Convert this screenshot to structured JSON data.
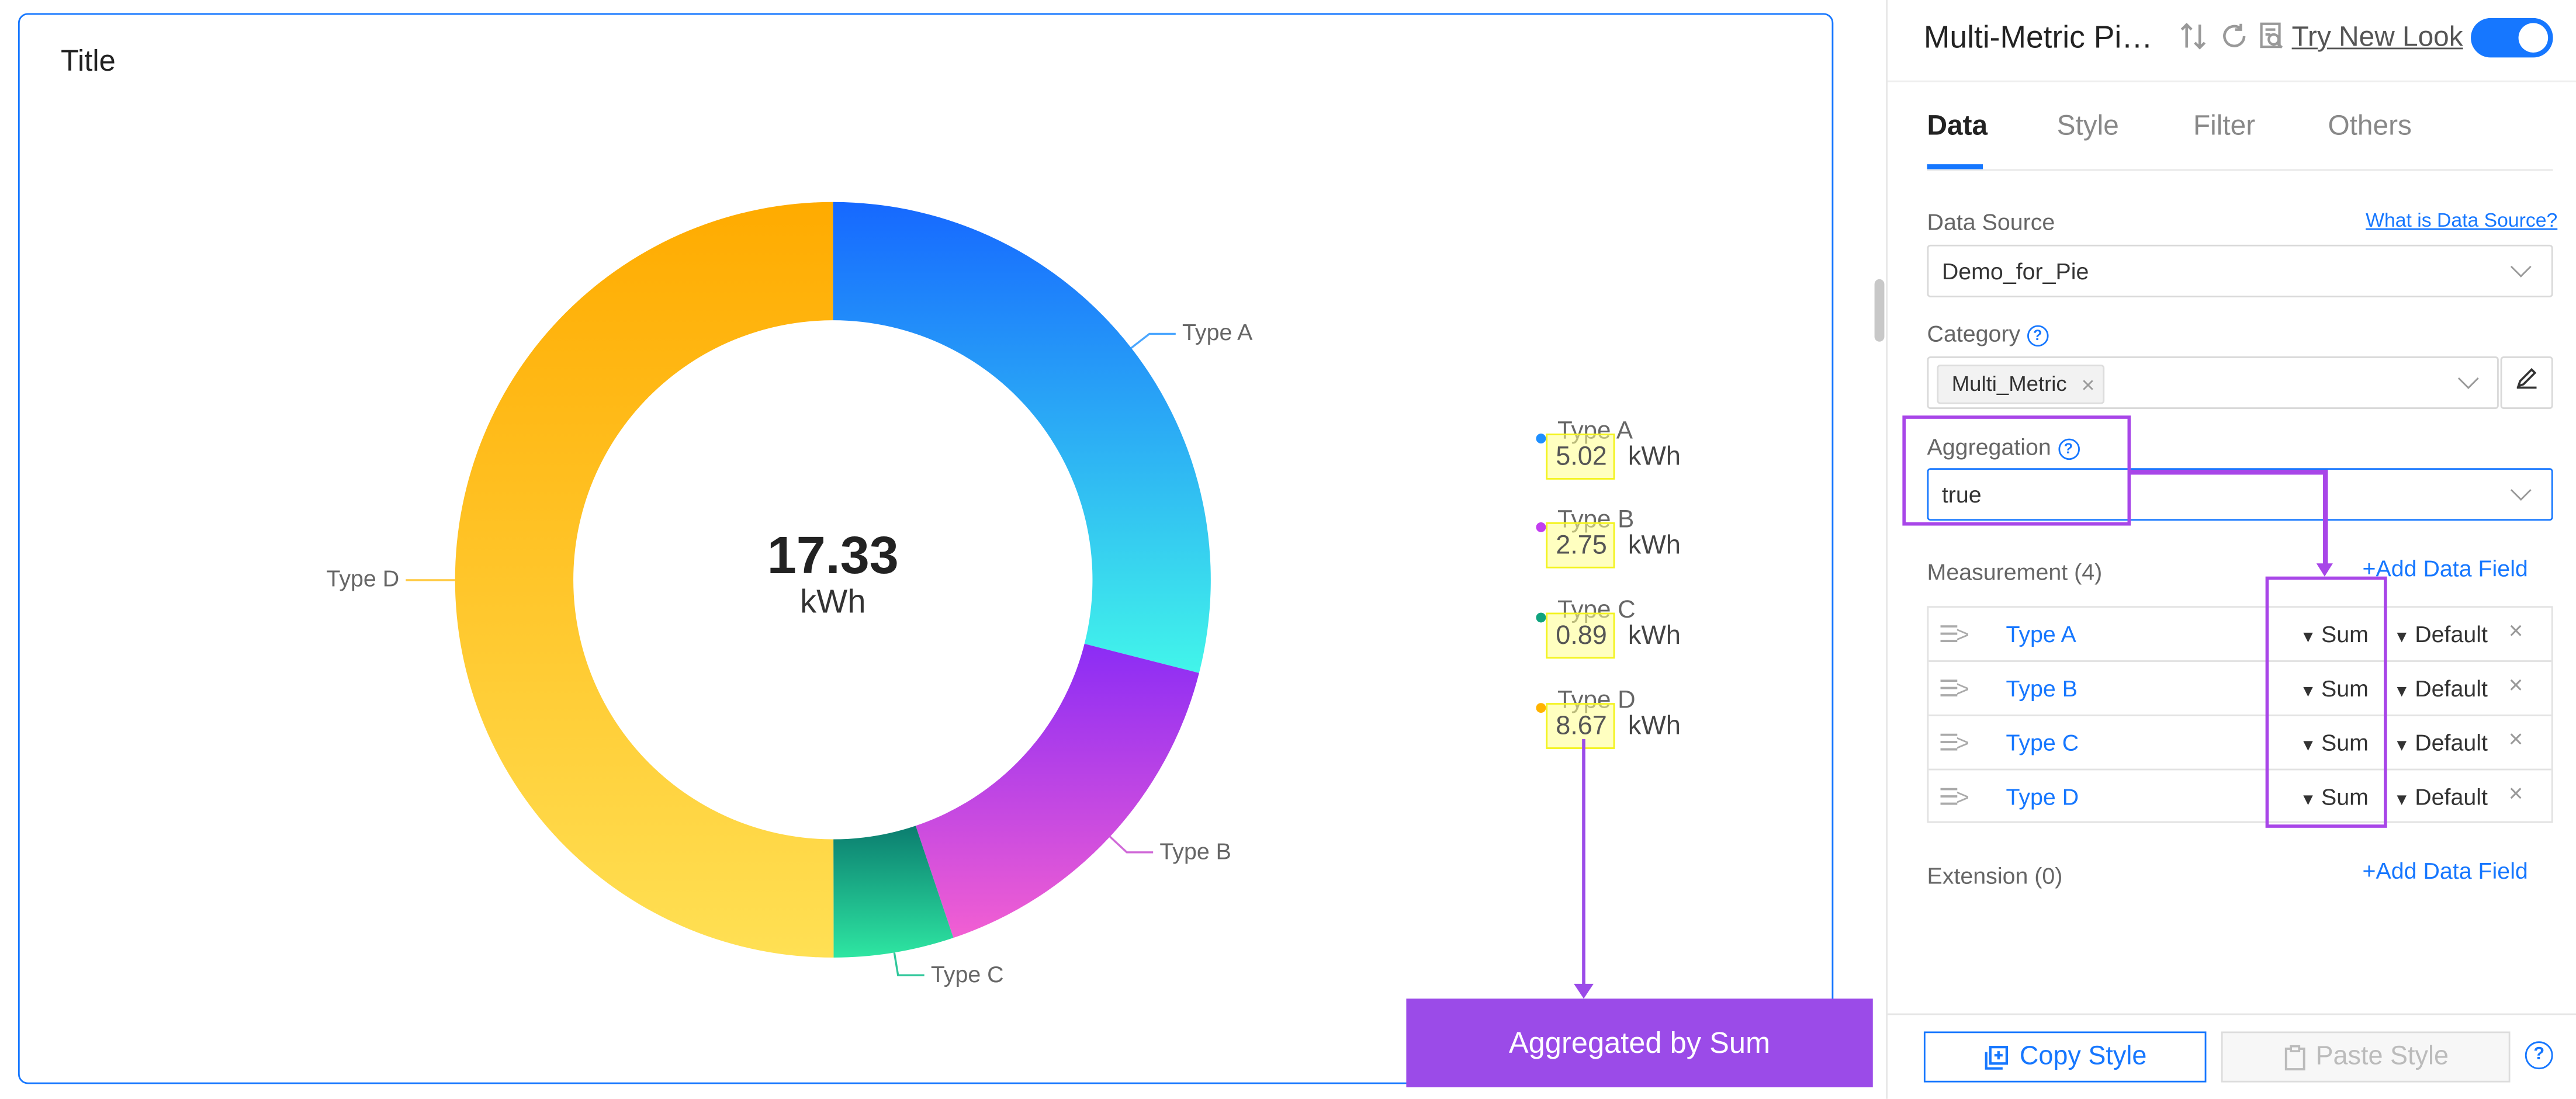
{
  "chart": {
    "title": "Title",
    "center_value": "17.33",
    "center_unit": "kWh"
  },
  "chart_data": {
    "type": "pie",
    "title": "Title",
    "donut": true,
    "total": 17.33,
    "unit": "kWh",
    "categories": [
      "Type A",
      "Type B",
      "Type C",
      "Type D"
    ],
    "values": [
      5.02,
      2.75,
      0.89,
      8.67
    ],
    "colors": [
      "#1677ff",
      "#9b30f0",
      "#10a37f",
      "#ffb300"
    ],
    "legend_placement": "right"
  },
  "legend": [
    {
      "name": "Type A",
      "value": "5.02",
      "unit": "kWh",
      "color": "#1f8fff"
    },
    {
      "name": "Type B",
      "value": "2.75",
      "unit": "kWh",
      "color": "#c23df0"
    },
    {
      "name": "Type C",
      "value": "0.89",
      "unit": "kWh",
      "color": "#10a37f"
    },
    {
      "name": "Type D",
      "value": "8.67",
      "unit": "kWh",
      "color": "#ffb300"
    }
  ],
  "annotation": {
    "text": "Aggregated by Sum"
  },
  "panel": {
    "title": "Multi-Metric Pi…",
    "try_new_look": "Try New Look",
    "icons": [
      "sort-icon",
      "refresh-icon",
      "inspect-icon"
    ],
    "tabs": [
      "Data",
      "Style",
      "Filter",
      "Others"
    ],
    "data_source_label": "Data Source",
    "what_is_data_source": "What is Data Source?",
    "data_source_value": "Demo_for_Pie",
    "category_label": "Category",
    "category_tag": "Multi_Metric",
    "aggregation_label": "Aggregation",
    "aggregation_value": "true",
    "measurement_label": "Measurement (4)",
    "add_data_field": "+Add Data Field",
    "measurements": [
      {
        "name": "Type A",
        "agg": "Sum",
        "format": "Default"
      },
      {
        "name": "Type B",
        "agg": "Sum",
        "format": "Default"
      },
      {
        "name": "Type C",
        "agg": "Sum",
        "format": "Default"
      },
      {
        "name": "Type D",
        "agg": "Sum",
        "format": "Default"
      }
    ],
    "extension_label": "Extension (0)",
    "copy_style": "Copy Style",
    "paste_style": "Paste Style"
  },
  "accent_color": "#1677ff",
  "highlight_color": "#a846e8"
}
